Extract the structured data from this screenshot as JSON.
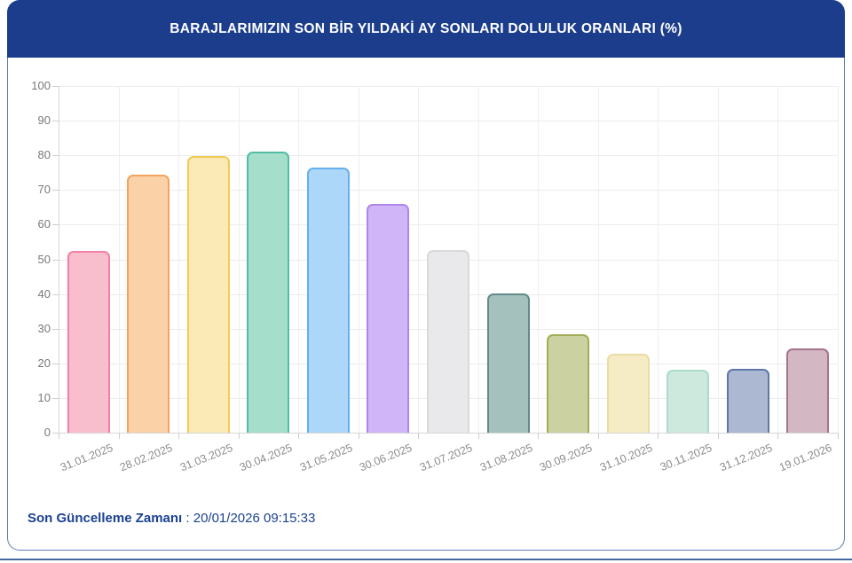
{
  "header": {
    "title": "BARAJLARIMIZIN SON BİR YILDAKİ AY SONLARI DOLULUK ORANLARI (%)",
    "bg_color": "#1B3D8C",
    "text_color": "#FFFFFF"
  },
  "footer": {
    "label": "Son Güncelleme Zamanı",
    "separator": " : ",
    "value": "20/01/2026 09:15:33",
    "color": "#1A4191"
  },
  "chart_data": {
    "type": "bar",
    "title": "BARAJLARIMIZIN SON BİR YILDAKİ AY SONLARI DOLULUK ORANLARI (%)",
    "xlabel": "",
    "ylabel": "",
    "ylim": [
      0,
      100
    ],
    "y_ticks": [
      0,
      10,
      20,
      30,
      40,
      50,
      60,
      70,
      80,
      90,
      100
    ],
    "grid": true,
    "legend": false,
    "categories": [
      "31.01.2025",
      "28.02.2025",
      "31.03.2025",
      "30.04.2025",
      "31.05.2025",
      "30.06.2025",
      "31.07.2025",
      "31.08.2025",
      "30.09.2025",
      "31.10.2025",
      "30.11.2025",
      "31.12.2025",
      "19.01.2026"
    ],
    "values": [
      52.4,
      74.3,
      79.8,
      81.2,
      76.4,
      66.1,
      52.8,
      40.2,
      28.5,
      22.7,
      18.1,
      18.3,
      24.2
    ],
    "bar_colors": [
      {
        "fill": "#F9BECE",
        "border": "#F180A6"
      },
      {
        "fill": "#FBD2A8",
        "border": "#F2A45F"
      },
      {
        "fill": "#FBEAB5",
        "border": "#F1CB57"
      },
      {
        "fill": "#A5DFCB",
        "border": "#52BDA6"
      },
      {
        "fill": "#ACD7F8",
        "border": "#67B0EC"
      },
      {
        "fill": "#D0B6F8",
        "border": "#AF85EC"
      },
      {
        "fill": "#E9E9EB",
        "border": "#D9D9DC"
      },
      {
        "fill": "#A5C1BE",
        "border": "#628B88"
      },
      {
        "fill": "#CBD1A0",
        "border": "#A2AC59"
      },
      {
        "fill": "#F5ECC6",
        "border": "#E9DCA4"
      },
      {
        "fill": "#CDE8DD",
        "border": "#ABDBC8"
      },
      {
        "fill": "#ACB8D2",
        "border": "#5F76A9"
      },
      {
        "fill": "#D3B7C3",
        "border": "#A4738D"
      }
    ]
  }
}
